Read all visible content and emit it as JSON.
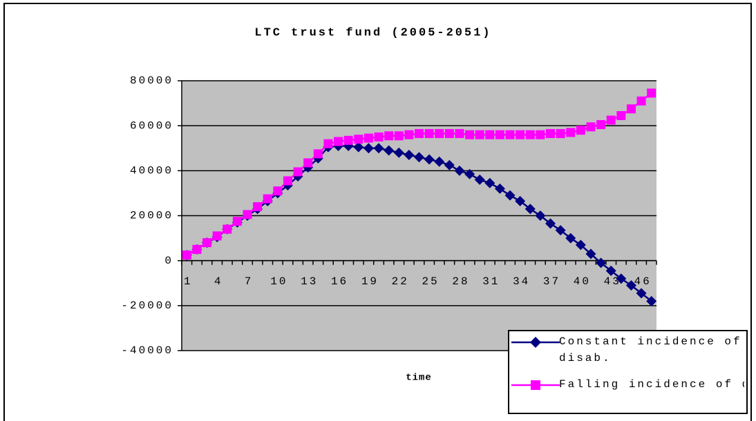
{
  "chart_data": {
    "type": "line",
    "title": "LTC trust fund (2005-2051)",
    "x_label": "time",
    "categories": [
      1,
      null,
      null,
      4,
      null,
      null,
      7,
      null,
      null,
      10,
      null,
      null,
      13,
      null,
      null,
      16,
      null,
      null,
      19,
      null,
      null,
      22,
      null,
      null,
      25,
      null,
      null,
      28,
      null,
      null,
      31,
      null,
      null,
      34,
      null,
      null,
      37,
      null,
      null,
      40,
      null,
      null,
      43,
      null,
      null,
      46,
      null
    ],
    "series": [
      {
        "name": "Constant incidence of disab.",
        "color": "#000080",
        "marker": "diamond",
        "values": [
          2500,
          5000,
          8000,
          10500,
          14000,
          17000,
          20000,
          23000,
          26500,
          30000,
          33500,
          37500,
          41500,
          45500,
          50500,
          51000,
          51000,
          50500,
          50000,
          50000,
          49000,
          48000,
          47000,
          46000,
          45000,
          44000,
          42500,
          40000,
          38500,
          36000,
          34500,
          32000,
          29000,
          26500,
          23000,
          20000,
          16500,
          13500,
          10000,
          7000,
          3000,
          -1000,
          -4500,
          -8000,
          -11000,
          -14500,
          -18000
        ]
      },
      {
        "name": "Falling incidence of disab.",
        "color": "#ff00ff",
        "marker": "square",
        "values": [
          2500,
          5000,
          8000,
          11000,
          14000,
          17500,
          20500,
          24000,
          27500,
          31000,
          35500,
          39500,
          43500,
          47500,
          52000,
          53000,
          53500,
          54000,
          54500,
          55000,
          55500,
          55500,
          56000,
          56500,
          56500,
          56500,
          56500,
          56500,
          56000,
          56000,
          56000,
          56000,
          56000,
          56000,
          56000,
          56000,
          56500,
          56500,
          57000,
          58000,
          59500,
          60500,
          62500,
          64500,
          67500,
          71000,
          74500
        ]
      }
    ],
    "ylim": [
      -40000,
      80000
    ],
    "yticks": [
      {
        "value": -40000,
        "label": "-40000"
      },
      {
        "value": -20000,
        "label": "-20000"
      },
      0,
      20000,
      40000,
      60000,
      80000
    ],
    "grid": true,
    "plot_background": "#c0c0c0",
    "legend_position": "lower right"
  }
}
